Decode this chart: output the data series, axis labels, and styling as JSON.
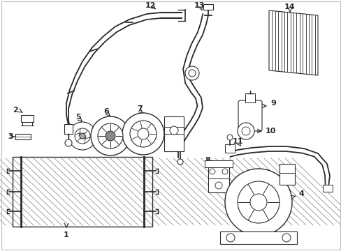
{
  "bg_color": "#ffffff",
  "line_color": "#2a2a2a",
  "figsize": [
    4.89,
    3.6
  ],
  "dpi": 100,
  "border_color": "#dddddd"
}
